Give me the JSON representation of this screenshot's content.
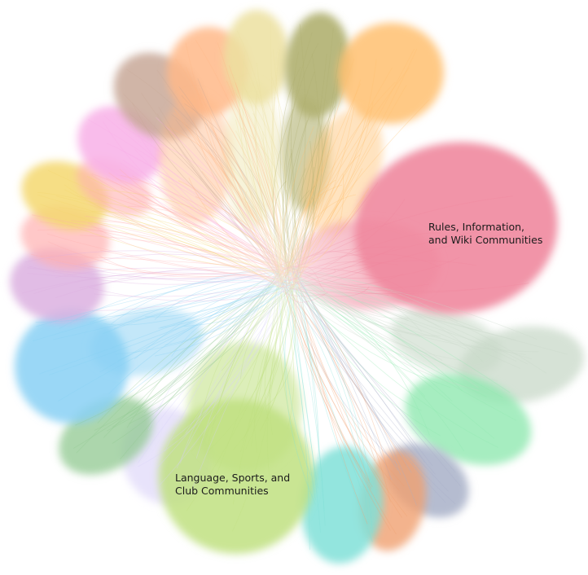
{
  "labels": {
    "rules": {
      "line1": "Rules, Information,",
      "line2": "and Wiki Communities"
    },
    "language": {
      "line1": "Language, Sports, and",
      "line2": "Club Communities"
    }
  },
  "clusters": [
    {
      "name": "rules-information-wiki",
      "color": "#f0889e"
    },
    {
      "name": "language-sports-club",
      "color": "#bfe080"
    },
    {
      "name": "light-orange",
      "color": "#ffc070"
    },
    {
      "name": "olive",
      "color": "#b0b070"
    },
    {
      "name": "pale-yellow",
      "color": "#ece0a0"
    },
    {
      "name": "peach",
      "color": "#ffb888"
    },
    {
      "name": "tan",
      "color": "#c8a898"
    },
    {
      "name": "light-pink",
      "color": "#f8b0e8"
    },
    {
      "name": "salmon-pink",
      "color": "#ffb0b0"
    },
    {
      "name": "yellow",
      "color": "#f4d870"
    },
    {
      "name": "lilac",
      "color": "#dcb0e0"
    },
    {
      "name": "sky-blue",
      "color": "#88d0f4"
    },
    {
      "name": "green",
      "color": "#90c890"
    },
    {
      "name": "lavender",
      "color": "#d8d0f8"
    },
    {
      "name": "turquoise",
      "color": "#80e0d8"
    },
    {
      "name": "orange",
      "color": "#f0a070"
    },
    {
      "name": "slate",
      "color": "#a8b0c8"
    },
    {
      "name": "mint",
      "color": "#90e8b0"
    },
    {
      "name": "sage",
      "color": "#c8d8c8"
    }
  ]
}
